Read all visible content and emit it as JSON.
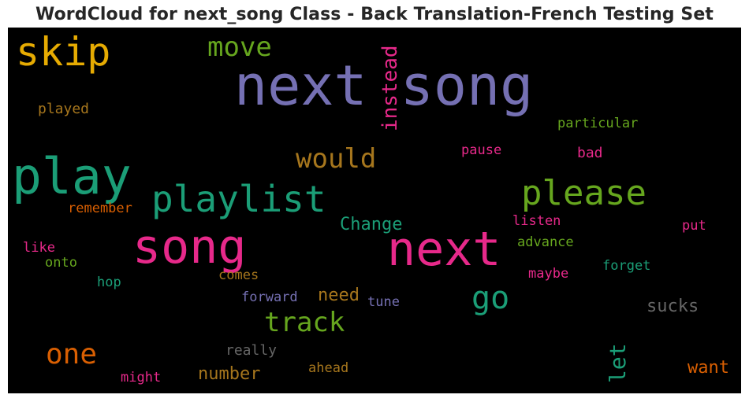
{
  "title": "WordCloud for next_song Class - Back Translation-French Testing Set",
  "chart_data": {
    "type": "wordcloud",
    "title": "WordCloud for next_song Class - Back Translation-French Testing Set",
    "background": "#000000",
    "words": [
      {
        "text": "next song",
        "color": "#7570b3"
      },
      {
        "text": "skip",
        "color": "#e6ab02"
      },
      {
        "text": "move",
        "color": "#66a61e"
      },
      {
        "text": "instead",
        "color": "#e7298a"
      },
      {
        "text": "played",
        "color": "#a6761d"
      },
      {
        "text": "particular",
        "color": "#66a61e"
      },
      {
        "text": "play",
        "color": "#1b9e77"
      },
      {
        "text": "would",
        "color": "#a6761d"
      },
      {
        "text": "pause",
        "color": "#e7298a"
      },
      {
        "text": "bad",
        "color": "#e7298a"
      },
      {
        "text": "playlist",
        "color": "#1b9e77"
      },
      {
        "text": "please",
        "color": "#66a61e"
      },
      {
        "text": "remember",
        "color": "#d95f02"
      },
      {
        "text": "Change",
        "color": "#1b9e77"
      },
      {
        "text": "listen",
        "color": "#e7298a"
      },
      {
        "text": "put",
        "color": "#e7298a"
      },
      {
        "text": "song",
        "color": "#e7298a"
      },
      {
        "text": "next",
        "color": "#e7298a"
      },
      {
        "text": "like",
        "color": "#e7298a"
      },
      {
        "text": "advance",
        "color": "#66a61e"
      },
      {
        "text": "onto",
        "color": "#66a61e"
      },
      {
        "text": "forget",
        "color": "#1b9e77"
      },
      {
        "text": "comes",
        "color": "#a6761d"
      },
      {
        "text": "maybe",
        "color": "#e7298a"
      },
      {
        "text": "hop",
        "color": "#1b9e77"
      },
      {
        "text": "go",
        "color": "#1b9e77"
      },
      {
        "text": "need",
        "color": "#a6761d"
      },
      {
        "text": "forward",
        "color": "#7570b3"
      },
      {
        "text": "tune",
        "color": "#7570b3"
      },
      {
        "text": "sucks",
        "color": "#666666"
      },
      {
        "text": "track",
        "color": "#66a61e"
      },
      {
        "text": "one",
        "color": "#d95f02"
      },
      {
        "text": "really",
        "color": "#666666"
      },
      {
        "text": "let",
        "color": "#1b9e77"
      },
      {
        "text": "number",
        "color": "#a6761d"
      },
      {
        "text": "ahead",
        "color": "#a6761d"
      },
      {
        "text": "want",
        "color": "#d95f02"
      },
      {
        "text": "might",
        "color": "#e7298a"
      }
    ]
  }
}
